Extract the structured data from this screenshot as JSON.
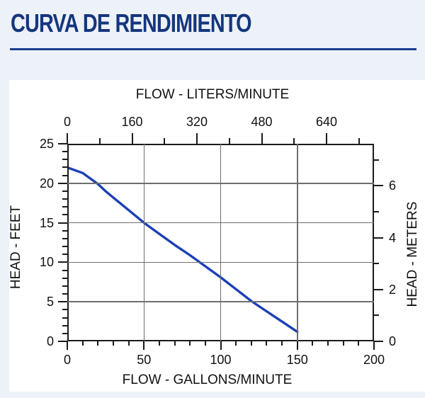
{
  "page": {
    "background": "#edf1f8",
    "panel_background": "#ffffff"
  },
  "header": {
    "title": "CURVA DE RENDIMIENTO",
    "title_color": "#14367d",
    "underline_color": "#1a3e8f"
  },
  "chart_data": {
    "type": "line",
    "top_axis": {
      "label": "FLOW - LITERS/MINUTE",
      "ticks": [
        0,
        160,
        320,
        480,
        640
      ],
      "minor_ticks": [
        80,
        240,
        400,
        560,
        720
      ],
      "units": "liters/minute"
    },
    "bottom_axis": {
      "label": "FLOW - GALLONS/MINUTE",
      "ticks": [
        0,
        50,
        100,
        150,
        200
      ],
      "minor_step": 10,
      "range": [
        0,
        200
      ]
    },
    "left_axis": {
      "label": "HEAD - FEET",
      "ticks": [
        0,
        5,
        10,
        15,
        20,
        25
      ],
      "minor_step": 1,
      "range": [
        0,
        25
      ]
    },
    "right_axis": {
      "label": "HEAD - METERS",
      "ticks": [
        0,
        2,
        4,
        6
      ],
      "minor_ticks": [
        1,
        3,
        5,
        7
      ],
      "units": "meters"
    },
    "grid": {
      "x_values": [
        50,
        100,
        150
      ],
      "y_values": [
        5,
        10,
        15,
        20
      ],
      "color": "#6e6e6e"
    },
    "series": [
      {
        "name": "pump-performance-curve",
        "color": "#1c3fb5",
        "points_gpm_feet": [
          [
            0,
            22.0
          ],
          [
            10,
            21.3
          ],
          [
            20,
            19.9
          ],
          [
            25,
            19.0
          ],
          [
            30,
            18.2
          ],
          [
            40,
            16.6
          ],
          [
            50,
            15.0
          ],
          [
            60,
            13.6
          ],
          [
            70,
            12.2
          ],
          [
            80,
            10.9
          ],
          [
            90,
            9.5
          ],
          [
            100,
            8.1
          ],
          [
            110,
            6.6
          ],
          [
            120,
            5.1
          ],
          [
            130,
            3.8
          ],
          [
            140,
            2.5
          ],
          [
            150,
            1.2
          ]
        ]
      }
    ],
    "axis_color": "#1a1a1a",
    "text_color": "#111111"
  }
}
